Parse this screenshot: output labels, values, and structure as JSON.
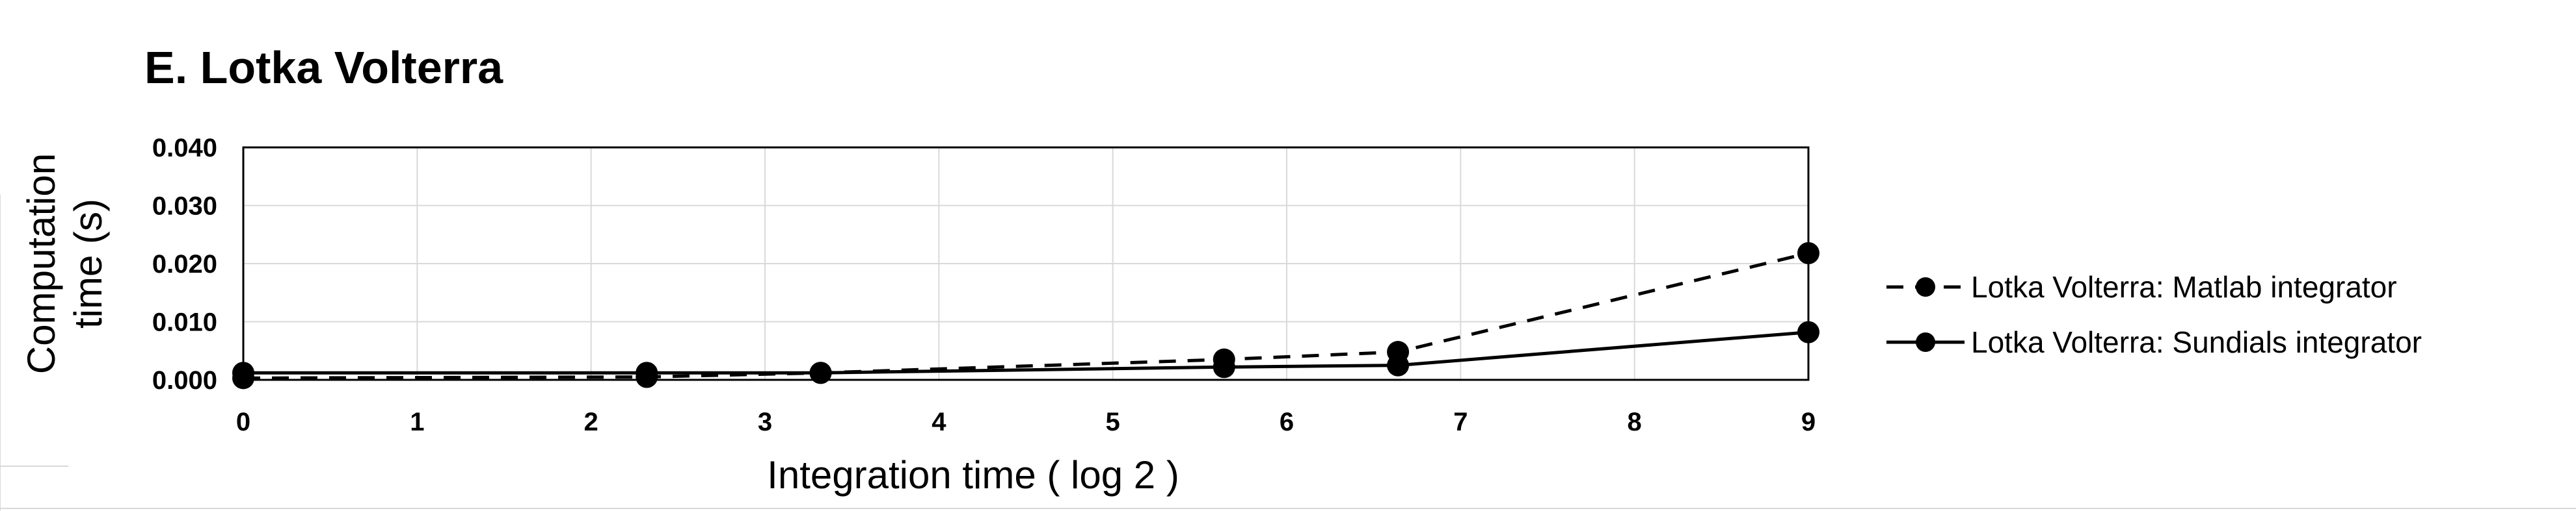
{
  "chart_data": {
    "type": "line",
    "title": "E. Lotka Volterra",
    "xlabel": "Integration time ( log 2 )",
    "ylabel": "Computation time (s)",
    "ylabel_lines": [
      "Computation",
      "time (s)"
    ],
    "xlim": [
      0,
      9
    ],
    "ylim": [
      0,
      0.04
    ],
    "x_ticks": [
      "0",
      "1",
      "2",
      "3",
      "4",
      "5",
      "6",
      "7",
      "8",
      "9"
    ],
    "y_ticks": [
      "0.000",
      "0.010",
      "0.020",
      "0.030",
      "0.040"
    ],
    "grid": true,
    "legend_position": "right",
    "series": [
      {
        "name": "Lotka Volterra: Matlab integrator",
        "style": "dashed",
        "color": "#000000",
        "x": [
          0,
          2.32,
          3.32,
          5.64,
          6.64,
          9
        ],
        "y": [
          0.0003,
          0.0005,
          0.0012,
          0.0035,
          0.0048,
          0.0218
        ]
      },
      {
        "name": "Lotka Volterra: Sundials integrator",
        "style": "solid",
        "color": "#000000",
        "x": [
          0,
          2.32,
          3.32,
          5.64,
          6.64,
          9
        ],
        "y": [
          0.0012,
          0.0012,
          0.0012,
          0.0022,
          0.0025,
          0.0082
        ]
      }
    ]
  }
}
